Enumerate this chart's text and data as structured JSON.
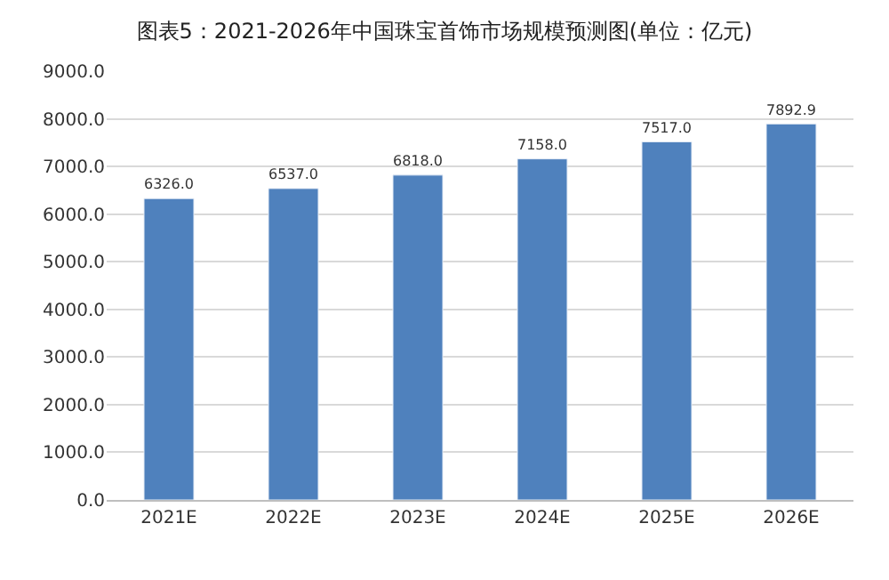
{
  "chart_data": {
    "type": "bar",
    "title": "图表5：2021-2026年中国珠宝首饰市场规模预测图(单位：亿元)",
    "categories": [
      "2021E",
      "2022E",
      "2023E",
      "2024E",
      "2025E",
      "2026E"
    ],
    "values": [
      6326.0,
      6537.0,
      6818.0,
      7158.0,
      7517.0,
      7892.9
    ],
    "value_labels": [
      "6326.0",
      "6537.0",
      "6818.0",
      "7158.0",
      "7517.0",
      "7892.9"
    ],
    "color": "#4f81bd",
    "ylim": [
      0,
      9000
    ],
    "yticks": [
      {
        "value": 0,
        "label": "0.0"
      },
      {
        "value": 1000,
        "label": "1000.0"
      },
      {
        "value": 2000,
        "label": "2000.0"
      },
      {
        "value": 3000,
        "label": "3000.0"
      },
      {
        "value": 4000,
        "label": "4000.0"
      },
      {
        "value": 5000,
        "label": "5000.0"
      },
      {
        "value": 6000,
        "label": "6000.0"
      },
      {
        "value": 7000,
        "label": "7000.0"
      },
      {
        "value": 8000,
        "label": "8000.0"
      },
      {
        "value": 9000,
        "label": "9000.0"
      }
    ],
    "grid": "y"
  }
}
